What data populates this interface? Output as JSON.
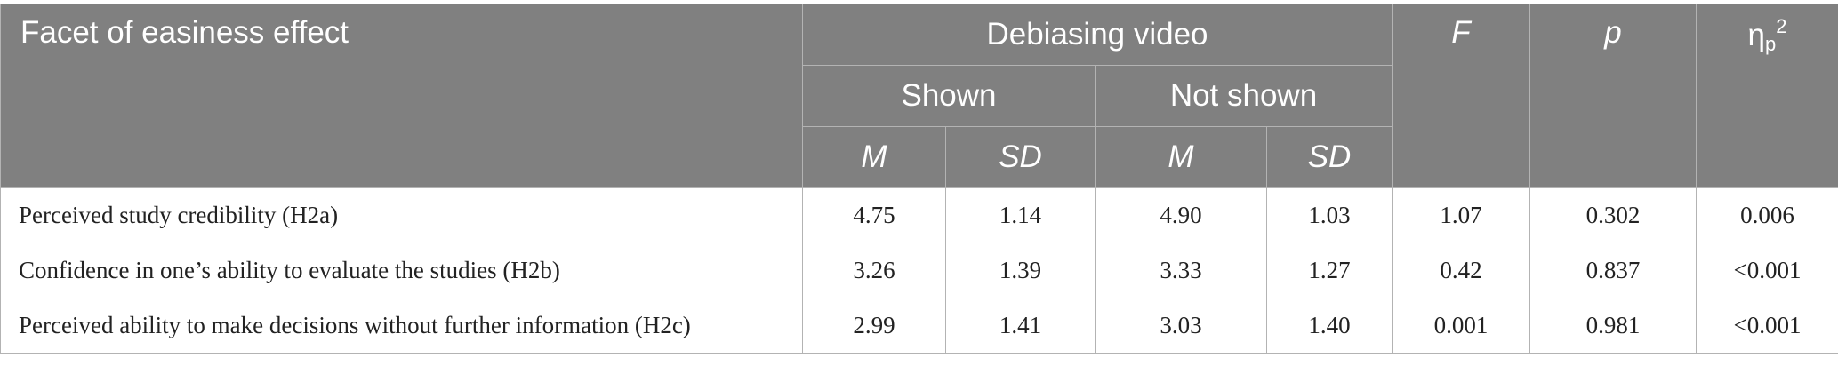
{
  "header": {
    "facet_label": "Facet of easiness effect",
    "group_label": "Debiasing video",
    "shown_label": "Shown",
    "not_shown_label": "Not shown",
    "m_label": "M",
    "sd_label": "SD",
    "f_label": "F",
    "p_label": "p",
    "eta_symbol": "η",
    "eta_sub": "p",
    "eta_sup": "2"
  },
  "rows": [
    {
      "facet": "Perceived study credibility (H2a)",
      "shown_m": "4.75",
      "shown_sd": "1.14",
      "notshown_m": "4.90",
      "notshown_sd": "1.03",
      "f": "1.07",
      "p": "0.302",
      "eta": "0.006"
    },
    {
      "facet": "Confidence in one’s ability to evaluate the studies (H2b)",
      "shown_m": "3.26",
      "shown_sd": "1.39",
      "notshown_m": "3.33",
      "notshown_sd": "1.27",
      "f": "0.42",
      "p": "0.837",
      "eta": "<0.001"
    },
    {
      "facet": "Perceived ability to make decisions without further information (H2c)",
      "shown_m": "2.99",
      "shown_sd": "1.41",
      "notshown_m": "3.03",
      "notshown_sd": "1.40",
      "f": "0.001",
      "p": "0.981",
      "eta": "<0.001"
    }
  ]
}
